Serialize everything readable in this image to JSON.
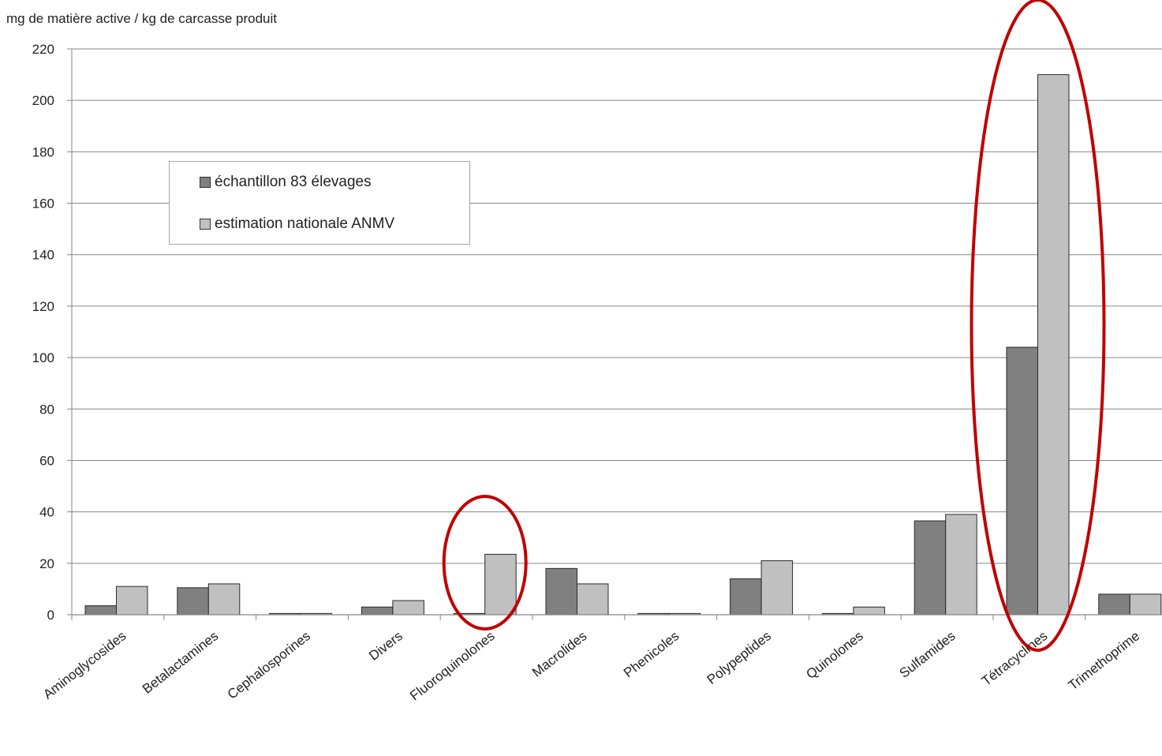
{
  "chart_data": {
    "type": "bar",
    "ylabel": "mg de matière active / kg de carcasse produit",
    "ylim": [
      0,
      220
    ],
    "yticks": [
      0,
      20,
      40,
      60,
      80,
      100,
      120,
      140,
      160,
      180,
      200,
      220
    ],
    "grid": true,
    "legend_position": "upper-left",
    "categories": [
      "Aminoglycosides",
      "Betalactamines",
      "Cephalosporines",
      "Divers",
      "Fluoroquinolones",
      "Macrolides",
      "Phenicoles",
      "Polypeptides",
      "Quinolones",
      "Sulfamides",
      "Tétracyclines",
      "Trimethoprime"
    ],
    "series": [
      {
        "name": "échantillon 83 élevages",
        "color": "#808080",
        "values": [
          3.5,
          10.5,
          0.5,
          3,
          0.5,
          18,
          0.5,
          14,
          0.5,
          36.5,
          104,
          8
        ]
      },
      {
        "name": "estimation nationale ANMV",
        "color": "#c0c0c0",
        "values": [
          11,
          12,
          0.5,
          5.5,
          23.5,
          12,
          0.5,
          21,
          3,
          39,
          210,
          8
        ]
      }
    ],
    "highlight_ovals": [
      "Fluoroquinolones",
      "Tétracyclines"
    ],
    "highlight_color": "#c00000"
  }
}
